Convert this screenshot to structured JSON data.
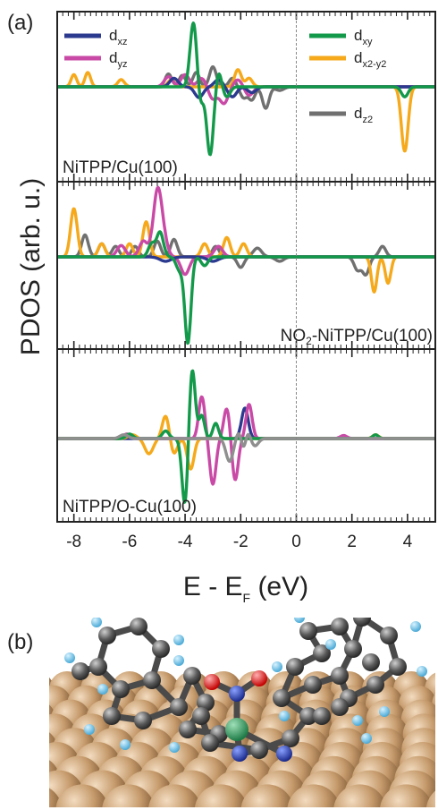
{
  "panel_a_label": "(a)",
  "panel_b_label": "(b)",
  "ylabel": "PDOS (arb. u.)",
  "xlabel_main": "E - E",
  "xlabel_sub": "F",
  "xlabel_tail": " (eV)",
  "colors": {
    "dxz": "#2b3a8f",
    "dyz": "#c94aa6",
    "dxy": "#13994a",
    "dx2y2": "#f5a91b",
    "dz2": "#707070",
    "label_top": "#222222",
    "label_mid": "#1d6b33",
    "label_bot": "#c01a3a"
  },
  "legend": {
    "dxz": {
      "main": "d",
      "sub": "xz"
    },
    "dyz": {
      "main": "d",
      "sub": "yz"
    },
    "dxy": {
      "main": "d",
      "sub": "xy"
    },
    "dx2y2": {
      "main": "d",
      "sub": "x2-y2"
    },
    "dz2": {
      "main": "d",
      "sub": "z2"
    }
  },
  "panel_labels": {
    "top": "NiTPP/Cu(100)",
    "mid_main": "NO",
    "mid_sub": "2",
    "mid_tail": "-NiTPP/Cu(100)",
    "bot": "NiTPP/O-Cu(100)"
  },
  "chart_data": {
    "type": "line",
    "xlim": [
      -8.6,
      5.0
    ],
    "xticks": [
      "-8",
      "-6",
      "-4",
      "-2",
      "0",
      "2",
      "4"
    ],
    "xtick_values": [
      -8,
      -6,
      -4,
      -2,
      0,
      2,
      4
    ],
    "fermi_level": 0,
    "ylim": [
      -1,
      1
    ],
    "panels": [
      {
        "name": "NiTPP/Cu(100)",
        "series": [
          {
            "name": "dxz",
            "peaks": [
              [
                -4.4,
                0.12,
                0.15
              ],
              [
                -3.5,
                -0.15,
                0.15
              ],
              [
                -2.8,
                0.1,
                0.15
              ],
              [
                -2.3,
                -0.14,
                0.15
              ],
              [
                -1.6,
                -0.08,
                0.15
              ]
            ]
          },
          {
            "name": "dyz",
            "peaks": [
              [
                -4.6,
                0.14,
                0.15
              ],
              [
                -4.0,
                0.17,
                0.15
              ],
              [
                -3.4,
                0.12,
                0.15
              ],
              [
                -3.0,
                -0.17,
                0.15
              ],
              [
                -2.6,
                -0.23,
                0.15
              ],
              [
                -2.1,
                0.1,
                0.15
              ],
              [
                -1.7,
                -0.12,
                0.15
              ]
            ]
          },
          {
            "name": "dxy",
            "peaks": [
              [
                -3.7,
                0.9,
                0.12
              ],
              [
                -3.45,
                -0.25,
                0.1
              ],
              [
                -3.1,
                -0.95,
                0.12
              ],
              [
                -2.8,
                0.22,
                0.1
              ],
              [
                -2.5,
                -0.14,
                0.12
              ],
              [
                3.9,
                -0.14,
                0.12
              ]
            ]
          },
          {
            "name": "dx2y2",
            "peaks": [
              [
                -8.0,
                0.17,
                0.1
              ],
              [
                -7.5,
                0.2,
                0.1
              ],
              [
                -6.3,
                0.1,
                0.12
              ],
              [
                -4.5,
                0.1,
                0.12
              ],
              [
                -2.1,
                0.24,
                0.12
              ],
              [
                -1.7,
                0.12,
                0.12
              ],
              [
                3.9,
                -0.9,
                0.12
              ]
            ]
          },
          {
            "name": "dz2",
            "peaks": [
              [
                -4.6,
                0.18,
                0.12
              ],
              [
                -4.1,
                0.16,
                0.12
              ],
              [
                -3.6,
                0.2,
                0.12
              ],
              [
                -3.0,
                0.28,
                0.12
              ],
              [
                -2.3,
                0.12,
                0.12
              ],
              [
                -1.9,
                -0.15,
                0.12
              ],
              [
                -1.6,
                -0.18,
                0.12
              ],
              [
                -1.1,
                -0.3,
                0.12
              ],
              [
                -0.6,
                -0.05,
                0.15
              ]
            ]
          }
        ]
      },
      {
        "name": "NO2-NiTPP/Cu(100)",
        "series": [
          {
            "name": "dxz",
            "peaks": [
              [
                -4.7,
                -0.05,
                0.2
              ],
              [
                -3.0,
                -0.05,
                0.2
              ]
            ]
          },
          {
            "name": "dyz",
            "peaks": [
              [
                -6.3,
                0.13,
                0.15
              ],
              [
                -5.5,
                0.18,
                0.15
              ],
              [
                -5.0,
                0.7,
                0.15
              ],
              [
                -4.8,
                0.2,
                0.15
              ],
              [
                -4.0,
                -0.2,
                0.15
              ],
              [
                -2.8,
                0.12,
                0.15
              ]
            ]
          },
          {
            "name": "dxy",
            "peaks": [
              [
                -5.2,
                0.15,
                0.12
              ],
              [
                -4.9,
                0.28,
                0.12
              ],
              [
                -4.2,
                -0.15,
                0.12
              ],
              [
                -3.9,
                -0.98,
                0.11
              ],
              [
                -3.3,
                -0.1,
                0.12
              ]
            ]
          },
          {
            "name": "dx2y2",
            "peaks": [
              [
                -8.0,
                0.55,
                0.12
              ],
              [
                -7.0,
                0.15,
                0.12
              ],
              [
                -6.0,
                0.15,
                0.12
              ],
              [
                -5.4,
                0.4,
                0.12
              ],
              [
                -3.3,
                0.15,
                0.12
              ],
              [
                -2.5,
                0.22,
                0.12
              ],
              [
                -1.9,
                0.15,
                0.12
              ],
              [
                2.8,
                -0.4,
                0.1
              ],
              [
                3.3,
                -0.3,
                0.1
              ]
            ]
          },
          {
            "name": "dz2",
            "peaks": [
              [
                -7.6,
                0.25,
                0.12
              ],
              [
                -7.0,
                0.15,
                0.12
              ],
              [
                -6.5,
                0.12,
                0.12
              ],
              [
                -5.8,
                0.12,
                0.12
              ],
              [
                -5.0,
                0.18,
                0.12
              ],
              [
                -4.4,
                0.2,
                0.12
              ],
              [
                -2.9,
                0.12,
                0.12
              ],
              [
                -2.0,
                -0.12,
                0.12
              ],
              [
                -1.4,
                0.1,
                0.15
              ],
              [
                -0.6,
                -0.05,
                0.15
              ],
              [
                2.2,
                -0.15,
                0.12
              ],
              [
                2.5,
                -0.2,
                0.12
              ],
              [
                3.1,
                0.12,
                0.12
              ]
            ]
          }
        ]
      },
      {
        "name": "NiTPP/O-Cu(100)",
        "series": [
          {
            "name": "dxz",
            "peaks": [
              [
                -1.85,
                0.4,
                0.12
              ]
            ]
          },
          {
            "name": "dyz",
            "peaks": [
              [
                -6.1,
                0.06,
                0.12
              ],
              [
                -3.4,
                0.55,
                0.11
              ],
              [
                -3.0,
                -0.6,
                0.11
              ],
              [
                -2.5,
                0.4,
                0.11
              ],
              [
                -2.2,
                -0.55,
                0.11
              ],
              [
                -1.7,
                0.45,
                0.11
              ],
              [
                1.7,
                0.04,
                0.12
              ]
            ]
          },
          {
            "name": "dxy",
            "peaks": [
              [
                -6.0,
                0.06,
                0.12
              ],
              [
                -4.7,
                0.1,
                0.12
              ],
              [
                -3.75,
                0.95,
                0.11
              ],
              [
                -4.0,
                -0.9,
                0.11
              ],
              [
                -3.4,
                0.3,
                0.1
              ],
              [
                -2.9,
                0.2,
                0.1
              ],
              [
                2.85,
                0.3,
                0.1
              ],
              [
                2.85,
                -0.25,
                0.1
              ]
            ]
          },
          {
            "name": "dx2y2",
            "peaks": [
              [
                -5.9,
                0.05,
                0.15
              ],
              [
                -5.3,
                -0.2,
                0.15
              ],
              [
                -4.7,
                0.3,
                0.12
              ],
              [
                -4.4,
                -0.2,
                0.12
              ],
              [
                -3.8,
                -0.4,
                0.12
              ],
              [
                2.85,
                0.85,
                0.11
              ],
              [
                2.85,
                -0.8,
                0.11
              ]
            ]
          },
          {
            "name": "dz2",
            "peaks": [
              [
                -6.2,
                0.05,
                0.15
              ],
              [
                -1.9,
                0.85,
                0.13
              ],
              [
                -2.4,
                -0.3,
                0.13
              ],
              [
                -1.9,
                -0.95,
                0.11
              ],
              [
                -1.5,
                -0.1,
                0.13
              ]
            ]
          }
        ]
      }
    ]
  }
}
